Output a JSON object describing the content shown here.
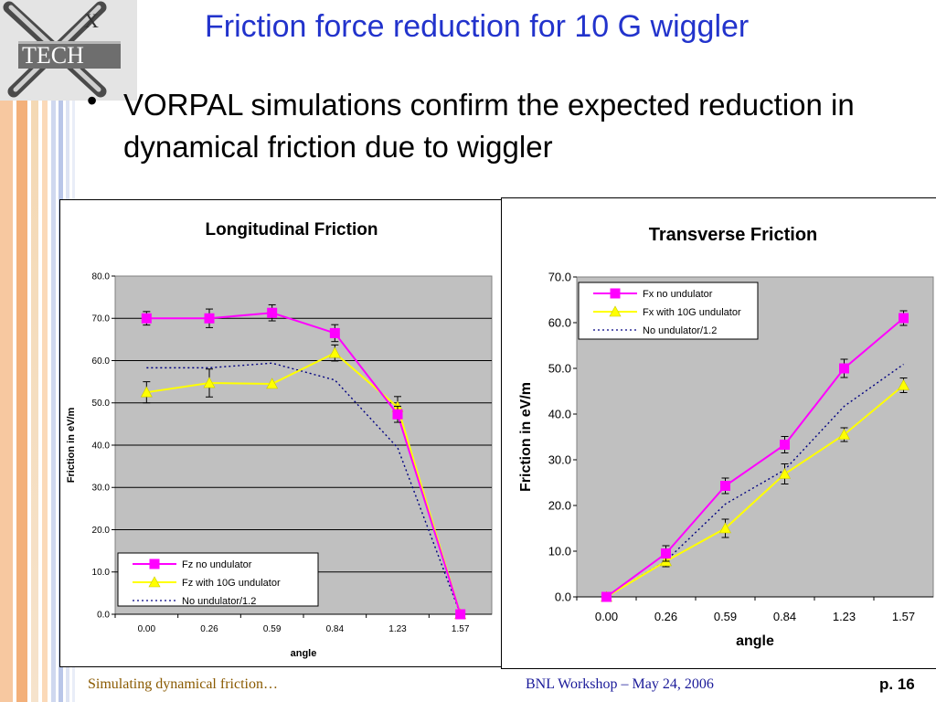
{
  "slide": {
    "title": "Friction force reduction for 10 G wiggler",
    "bullet_symbol": "•",
    "bullet": "VORPAL simulations confirm the expected reduction in dynamical friction due to wiggler",
    "logo_text": "TECH",
    "logo_letter": "X",
    "footer_left": "Simulating dynamical friction…",
    "footer_mid": "BNL Workshop – May 24, 2006",
    "footer_right": "p. 16"
  },
  "colors": {
    "title": "#2233cc",
    "plot_bg": "#c0c0c0",
    "series_no_undulator": "#ff00ff",
    "series_with_undulator": "#ffff00",
    "series_ratio": "#000080"
  },
  "chart_data": [
    {
      "type": "line",
      "title": "Longitudinal Friction",
      "xlabel": "angle",
      "ylabel": "Friction in eV/m",
      "categories": [
        "0.00",
        "0.26",
        "0.59",
        "0.84",
        "1.23",
        "1.57"
      ],
      "ylim": [
        0,
        80
      ],
      "yticks": [
        "0.0",
        "10.0",
        "20.0",
        "30.0",
        "40.0",
        "50.0",
        "60.0",
        "70.0",
        "80.0"
      ],
      "grid": true,
      "legend_position": "bottom-left",
      "series": [
        {
          "name": "Fz no undulator",
          "values": [
            70.0,
            70.0,
            71.3,
            66.5,
            47.3,
            0.0
          ],
          "errors": [
            1.6,
            2.2,
            1.9,
            2.0,
            1.9,
            0.0
          ],
          "color": "#ff00ff",
          "marker": "square",
          "style": "solid"
        },
        {
          "name": "Fz with 10G undulator",
          "values": [
            52.5,
            54.7,
            54.5,
            61.8,
            49.0,
            0.0
          ],
          "errors": [
            2.5,
            3.3,
            0.0,
            1.9,
            2.5,
            0.0
          ],
          "color": "#ffff00",
          "marker": "triangle",
          "style": "solid"
        },
        {
          "name": "No undulator/1.2",
          "values": [
            58.3,
            58.3,
            59.4,
            55.4,
            39.4,
            0.0
          ],
          "color": "#000080",
          "marker": "none",
          "style": "dotted"
        }
      ]
    },
    {
      "type": "line",
      "title": "Transverse Friction",
      "xlabel": "angle",
      "ylabel": "Friction in eV/m",
      "categories": [
        "0.00",
        "0.26",
        "0.59",
        "0.84",
        "1.23",
        "1.57"
      ],
      "ylim": [
        0,
        70
      ],
      "yticks": [
        "0.0",
        "10.0",
        "20.0",
        "30.0",
        "40.0",
        "50.0",
        "60.0",
        "70.0"
      ],
      "grid": false,
      "legend_position": "top-left",
      "series": [
        {
          "name": "Fx no undulator",
          "values": [
            0.0,
            9.5,
            24.3,
            33.3,
            50.0,
            61.0
          ],
          "errors": [
            0.0,
            1.7,
            1.7,
            1.8,
            2.0,
            1.6
          ],
          "color": "#ff00ff",
          "marker": "square",
          "style": "solid"
        },
        {
          "name": "Fx with 10G undulator",
          "values": [
            0.0,
            7.8,
            15.0,
            26.9,
            35.5,
            46.3
          ],
          "errors": [
            0.0,
            1.2,
            2.0,
            2.2,
            1.5,
            1.6
          ],
          "color": "#ffff00",
          "marker": "triangle",
          "style": "solid"
        },
        {
          "name": "No undulator/1.2",
          "values": [
            0.0,
            7.9,
            20.3,
            27.8,
            41.7,
            50.9
          ],
          "color": "#000080",
          "marker": "none",
          "style": "dotted"
        }
      ]
    }
  ]
}
